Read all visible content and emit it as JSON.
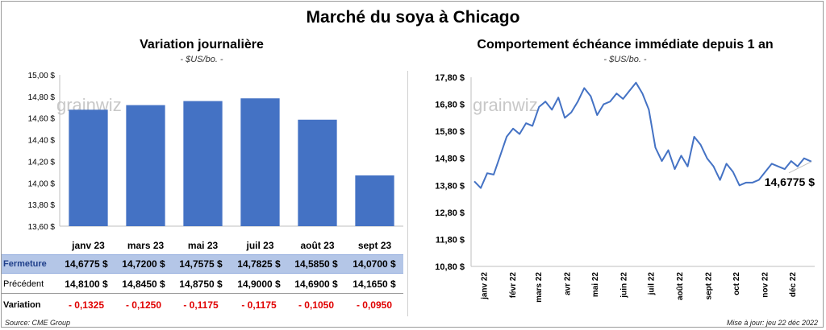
{
  "title": "Marché du soya à Chicago",
  "source": "Source: CME Group",
  "updated": "Mise à jour: jeu 22 déc 2022",
  "watermark": "grainwiz",
  "colors": {
    "bar": "#4472c4",
    "line": "#4472c4",
    "negative": "#e00000",
    "row_highlight": "#b4c6e7"
  },
  "chart_data": [
    {
      "type": "bar",
      "title": "Variation journalière",
      "subtitle": "- $US/bo. -",
      "categories": [
        "janv 23",
        "mars 23",
        "mai 23",
        "juil 23",
        "août 23",
        "sept 23"
      ],
      "values": [
        14.6775,
        14.72,
        14.7575,
        14.7825,
        14.585,
        14.07
      ],
      "ylim": [
        13.6,
        15.0
      ],
      "yticks": [
        "13,60 $",
        "13,80 $",
        "14,00 $",
        "14,20 $",
        "14,40 $",
        "14,60 $",
        "14,80 $",
        "15,00 $"
      ],
      "grid": false
    },
    {
      "type": "line",
      "title": "Comportement échéance immédiate depuis 1 an",
      "subtitle": "- $US/bo. -",
      "ylim": [
        10.8,
        17.8
      ],
      "yticks": [
        "10,80 $",
        "11,80 $",
        "12,80 $",
        "13,80 $",
        "14,80 $",
        "15,80 $",
        "16,80 $",
        "17,80 $"
      ],
      "xticks": [
        "janv 22",
        "févr 22",
        "mars 22",
        "avr 22",
        "mai 22",
        "juin 22",
        "juil 22",
        "août 22",
        "sept 22",
        "oct 22",
        "nov 22",
        "déc 22"
      ],
      "x": [
        "2021-12-22",
        "2021-12-29",
        "2022-01-05",
        "2022-01-12",
        "2022-01-19",
        "2022-01-26",
        "2022-02-02",
        "2022-02-09",
        "2022-02-16",
        "2022-02-23",
        "2022-03-02",
        "2022-03-09",
        "2022-03-16",
        "2022-03-23",
        "2022-03-30",
        "2022-04-06",
        "2022-04-13",
        "2022-04-20",
        "2022-04-27",
        "2022-05-04",
        "2022-05-11",
        "2022-05-18",
        "2022-05-25",
        "2022-06-01",
        "2022-06-08",
        "2022-06-15",
        "2022-06-22",
        "2022-06-29",
        "2022-07-06",
        "2022-07-13",
        "2022-07-20",
        "2022-07-27",
        "2022-08-03",
        "2022-08-10",
        "2022-08-17",
        "2022-08-24",
        "2022-08-31",
        "2022-09-07",
        "2022-09-14",
        "2022-09-21",
        "2022-09-28",
        "2022-10-05",
        "2022-10-12",
        "2022-10-19",
        "2022-10-26",
        "2022-11-02",
        "2022-11-09",
        "2022-11-16",
        "2022-11-23",
        "2022-11-30",
        "2022-12-07",
        "2022-12-14",
        "2022-12-22"
      ],
      "y": [
        13.95,
        13.7,
        14.25,
        14.2,
        14.9,
        15.6,
        15.9,
        15.7,
        16.1,
        16.0,
        16.7,
        16.9,
        16.6,
        17.05,
        16.3,
        16.5,
        16.9,
        17.4,
        17.1,
        16.4,
        16.8,
        16.9,
        17.2,
        17.0,
        17.3,
        17.6,
        17.2,
        16.6,
        15.2,
        14.7,
        15.1,
        14.4,
        14.9,
        14.5,
        15.6,
        15.3,
        14.8,
        14.5,
        14.0,
        14.6,
        14.3,
        13.8,
        13.9,
        13.9,
        14.0,
        14.3,
        14.6,
        14.5,
        14.4,
        14.7,
        14.5,
        14.8,
        14.6775
      ],
      "last_label": "14,6775 $"
    }
  ],
  "table": {
    "rows": [
      {
        "label": "Fermeture",
        "values": [
          "14,6775  $",
          "14,7200  $",
          "14,7575  $",
          "14,7825  $",
          "14,5850  $",
          "14,0700  $"
        ]
      },
      {
        "label": "Précédent",
        "values": [
          "14,8100  $",
          "14,8450  $",
          "14,8750  $",
          "14,9000  $",
          "14,6900  $",
          "14,1650  $"
        ]
      },
      {
        "label": "Variation",
        "values": [
          "- 0,1325",
          "- 0,1250",
          "- 0,1175",
          "- 0,1175",
          "- 0,1050",
          "- 0,0950"
        ]
      }
    ]
  }
}
